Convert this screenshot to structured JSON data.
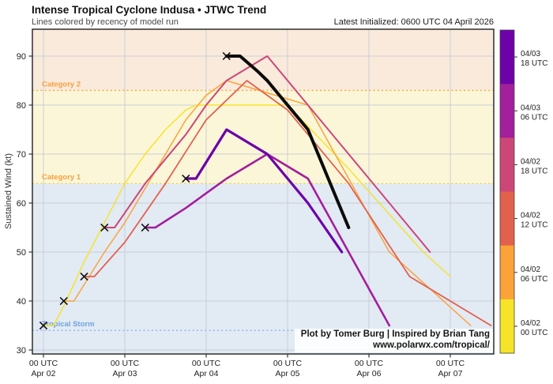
{
  "header": {
    "title": "Intense Tropical Cyclone Indusa • JTWC Trend",
    "subtitle": "Lines colored by recency of model run",
    "latest_initialized": "Latest Initialized: 0600 UTC 04 April 2026"
  },
  "attribution": {
    "line1": "Plot by Tomer Burg | Inspired by Brian Tang",
    "line2": "www.polarwx.com/tropical/"
  },
  "chart_data": {
    "type": "line",
    "title": "Intense Tropical Cyclone Indusa • JTWC Trend",
    "subtitle": "Lines colored by recency of model run",
    "xlabel": "",
    "ylabel": "Sustained Wind (kt)",
    "x_origin": "2026-04-02 00:00 UTC (hours offset)",
    "xlim_hours": [
      -3.3,
      132.9
    ],
    "ylim": [
      29.1,
      95.6
    ],
    "grid": true,
    "legend_position": "right-colorbar",
    "y_ticks": [
      30,
      40,
      50,
      60,
      70,
      80,
      90
    ],
    "x_ticks": [
      {
        "hours": 0,
        "label": "00 UTC",
        "sub": "Apr 02"
      },
      {
        "hours": 24,
        "label": "00 UTC",
        "sub": "Apr 03"
      },
      {
        "hours": 48,
        "label": "00 UTC",
        "sub": "Apr 04"
      },
      {
        "hours": 72,
        "label": "00 UTC",
        "sub": "Apr 05"
      },
      {
        "hours": 96,
        "label": "00 UTC",
        "sub": "Apr 06"
      },
      {
        "hours": 120,
        "label": "00 UTC",
        "sub": "Apr 07"
      }
    ],
    "zones": [
      {
        "from": 83,
        "to": 95.6,
        "color": "#faeadb"
      },
      {
        "from": 64,
        "to": 83,
        "color": "#fcf6d8"
      },
      {
        "from": 29.1,
        "to": 64,
        "color": "#e2eaf4"
      }
    ],
    "thresholds": [
      {
        "value": 83,
        "label": "Category 2",
        "line_color": "#f6a53c",
        "label_color": "#f5a03c"
      },
      {
        "value": 64,
        "label": "Category 1",
        "line_color": "#e7d44b",
        "label_color": "#f5a03c"
      },
      {
        "value": 34,
        "label": "Tropical Storm",
        "line_color": "#8ab4e8",
        "label_color": "#6fa3dc"
      }
    ],
    "series": [
      {
        "run": "04/02 00 UTC",
        "color": "#f5e42a",
        "width": 1.5,
        "points": [
          [
            0,
            35
          ],
          [
            3,
            35
          ],
          [
            6,
            39
          ],
          [
            12,
            48
          ],
          [
            18,
            56
          ],
          [
            24,
            64
          ],
          [
            30,
            70
          ],
          [
            36,
            75
          ],
          [
            42,
            79
          ],
          [
            45,
            80
          ],
          [
            72,
            80
          ],
          [
            90,
            67
          ],
          [
            112,
            50
          ],
          [
            120,
            45
          ]
        ]
      },
      {
        "run": "04/02 06 UTC",
        "color": "#fba238",
        "width": 1.5,
        "points": [
          [
            6,
            40
          ],
          [
            9,
            40
          ],
          [
            18,
            50
          ],
          [
            24,
            56
          ],
          [
            30,
            63
          ],
          [
            36,
            70
          ],
          [
            42,
            77
          ],
          [
            48,
            82
          ],
          [
            54,
            85
          ],
          [
            78,
            80
          ],
          [
            102,
            50
          ],
          [
            126,
            35
          ]
        ]
      },
      {
        "run": "04/02 12 UTC",
        "color": "#e2614d",
        "width": 1.8,
        "points": [
          [
            12,
            45
          ],
          [
            15,
            45
          ],
          [
            24,
            52
          ],
          [
            36,
            64
          ],
          [
            48,
            77
          ],
          [
            60,
            85
          ],
          [
            72,
            79
          ],
          [
            90,
            64
          ],
          [
            108,
            45
          ],
          [
            132,
            35
          ]
        ]
      },
      {
        "run": "04/02 18 UTC",
        "color": "#cc4778",
        "width": 2,
        "points": [
          [
            18,
            55
          ],
          [
            21,
            55
          ],
          [
            30,
            64
          ],
          [
            36,
            69
          ],
          [
            42,
            74
          ],
          [
            48,
            80
          ],
          [
            54,
            85
          ],
          [
            66,
            90
          ],
          [
            78,
            80
          ],
          [
            90,
            70
          ],
          [
            102,
            60
          ],
          [
            114,
            50
          ]
        ]
      },
      {
        "run": "04/03 06 UTC",
        "color": "#a31f9b",
        "width": 2.6,
        "points": [
          [
            30,
            55
          ],
          [
            33,
            55
          ],
          [
            42,
            59
          ],
          [
            48,
            62
          ],
          [
            54,
            65
          ],
          [
            66,
            70
          ],
          [
            78,
            65
          ],
          [
            90,
            50
          ],
          [
            102,
            35
          ]
        ]
      },
      {
        "run": "04/03 18 UTC",
        "color": "#6c02a8",
        "width": 3.2,
        "points": [
          [
            42,
            65
          ],
          [
            45,
            65
          ],
          [
            54,
            75
          ],
          [
            66,
            70
          ],
          [
            78,
            60
          ],
          [
            88,
            50
          ]
        ]
      }
    ],
    "latest_forecast": {
      "run": "04/04 06 UTC",
      "color": "#0b0b0b",
      "width": 4,
      "points": [
        [
          54,
          90
        ],
        [
          58,
          90
        ],
        [
          63,
          87
        ],
        [
          66,
          85
        ],
        [
          72,
          80
        ],
        [
          78,
          75
        ],
        [
          84,
          65
        ],
        [
          90,
          55
        ]
      ]
    },
    "observed_points": [
      [
        0,
        35
      ],
      [
        6,
        40
      ],
      [
        12,
        45
      ],
      [
        18,
        55
      ],
      [
        30,
        55
      ],
      [
        42,
        65
      ],
      [
        54,
        90
      ]
    ],
    "observed_marker": "x"
  },
  "colorbar": {
    "segments": [
      {
        "color": "#6c02a8",
        "label_line1": "04/03",
        "label_line2": "18 UTC"
      },
      {
        "color": "#a31f9b",
        "label_line1": "04/03",
        "label_line2": "06 UTC"
      },
      {
        "color": "#cc4778",
        "label_line1": "04/02",
        "label_line2": "18 UTC"
      },
      {
        "color": "#e2614d",
        "label_line1": "04/02",
        "label_line2": "12 UTC"
      },
      {
        "color": "#fba238",
        "label_line1": "04/02",
        "label_line2": "06 UTC"
      },
      {
        "color": "#f5e42a",
        "label_line1": "04/02",
        "label_line2": "00 UTC"
      }
    ]
  }
}
